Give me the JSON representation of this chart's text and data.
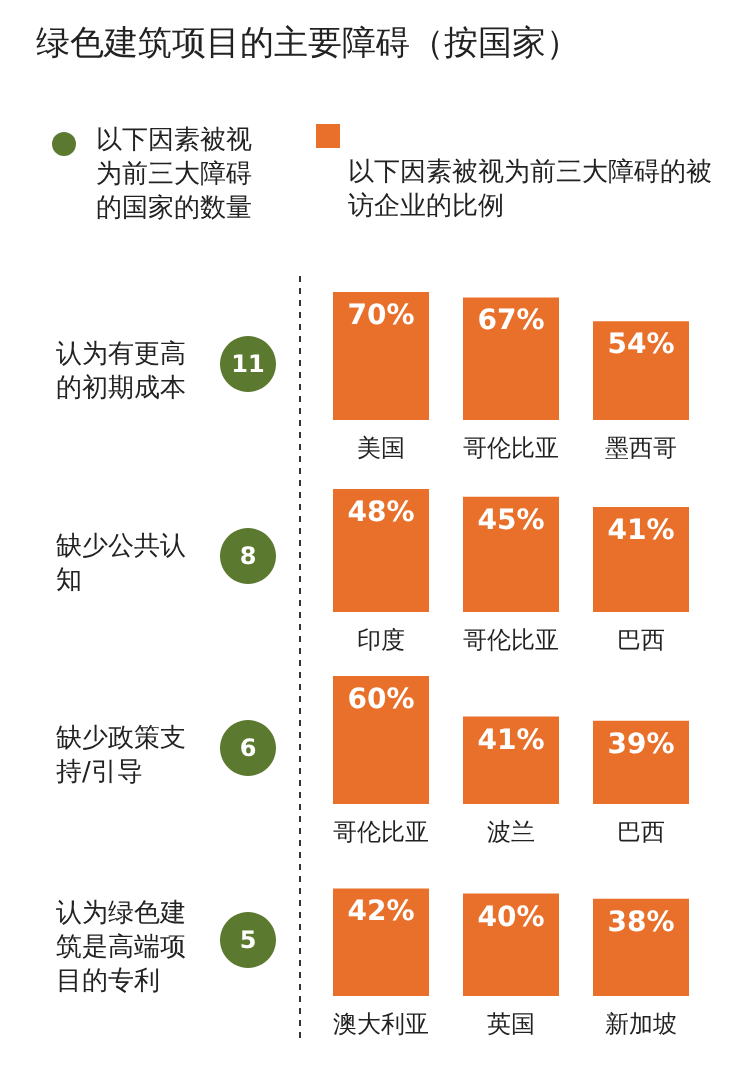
{
  "chart_data": [
    {
      "type": "other",
      "title": "绿色建筑项目的主要障碍（按国家）",
      "annotations": [
        "以下因素被视为前三大障碍的国家的数量",
        "以下因素被视为前三大障碍的被访企业的比例"
      ]
    },
    {
      "type": "bar",
      "title": "认为有更高的初期成本",
      "annotations": [
        "11"
      ],
      "categories": [
        "美国",
        "哥伦比亚",
        "墨西哥"
      ],
      "values": [
        70,
        67,
        54
      ],
      "value_labels": [
        "70%",
        "67%",
        "54%"
      ],
      "color": "#e8702a"
    },
    {
      "type": "bar",
      "title": "缺少公共认知",
      "annotations": [
        "8"
      ],
      "categories": [
        "印度",
        "哥伦比亚",
        "巴西"
      ],
      "values": [
        48,
        45,
        41
      ],
      "value_labels": [
        "48%",
        "45%",
        "41%"
      ],
      "color": "#e8702a"
    },
    {
      "type": "bar",
      "title": "缺少政策支持/引导",
      "annotations": [
        "6"
      ],
      "categories": [
        "哥伦比亚",
        "波兰",
        "巴西"
      ],
      "values": [
        60,
        41,
        39
      ],
      "value_labels": [
        "60%",
        "41%",
        "39%"
      ],
      "color": "#e8702a"
    },
    {
      "type": "bar",
      "title": "认为绿色建筑是高端项目的专利",
      "annotations": [
        "5"
      ],
      "categories": [
        "澳大利亚",
        "英国",
        "新加坡"
      ],
      "values": [
        42,
        40,
        38
      ],
      "value_labels": [
        "42%",
        "40%",
        "38%"
      ],
      "color": "#e8702a"
    }
  ]
}
